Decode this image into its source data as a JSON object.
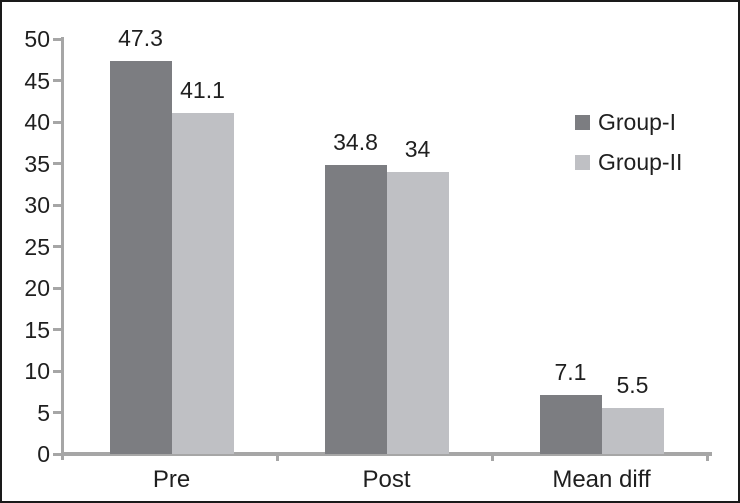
{
  "chart_data": {
    "type": "bar",
    "categories": [
      "Pre",
      "Post",
      "Mean diff"
    ],
    "series": [
      {
        "name": "Group-I",
        "color": "#7c7d81",
        "values": [
          47.3,
          34.8,
          7.1
        ],
        "labels": [
          "47.3",
          "34.8",
          "7.1"
        ]
      },
      {
        "name": "Group-II",
        "color": "#bfc0c4",
        "values": [
          41.1,
          34.0,
          5.5
        ],
        "labels": [
          "41.1",
          "34",
          "5.5"
        ]
      }
    ],
    "title": "",
    "xlabel": "",
    "ylabel": "",
    "ylim": [
      0,
      50
    ],
    "ytick_interval": 5,
    "yticks": [
      "0",
      "5",
      "10",
      "15",
      "20",
      "25",
      "30",
      "35",
      "40",
      "45",
      "50"
    ],
    "grid": false,
    "legend_position": "right",
    "axis_color": "#a6a6a6",
    "text_color": "#1f1f1f",
    "background_color": "#ffffff",
    "border_color": "#1a1a1a"
  }
}
